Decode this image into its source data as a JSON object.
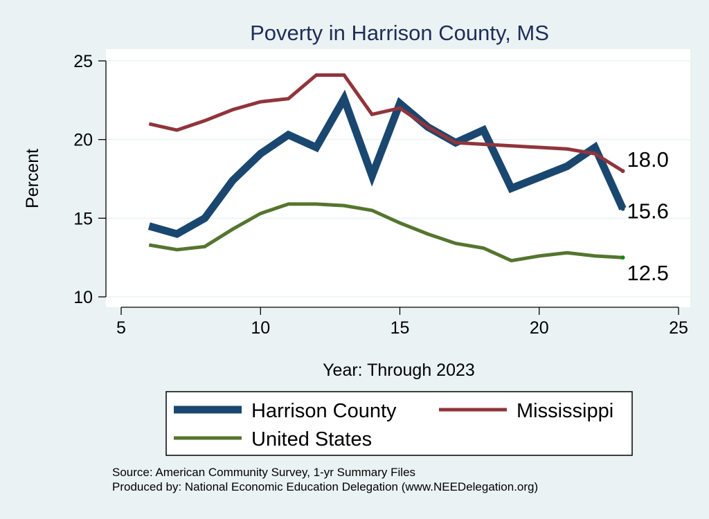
{
  "chart_data": {
    "type": "line",
    "title": "Poverty in Harrison County, MS",
    "xlabel": "Year: Through 2023",
    "ylabel": "Percent",
    "xlim": [
      5,
      25
    ],
    "ylim": [
      10,
      25
    ],
    "xticks": [
      5,
      10,
      15,
      20,
      25
    ],
    "yticks": [
      10,
      15,
      20,
      25
    ],
    "grid": true,
    "legend_position": "bottom",
    "series": [
      {
        "name": "Harrison County",
        "color": "#1a476f",
        "x": [
          6,
          7,
          8,
          9,
          10,
          11,
          12,
          13,
          14,
          15,
          16,
          17,
          18,
          19,
          20,
          21,
          22,
          23
        ],
        "values": [
          14.5,
          14.0,
          15.0,
          17.4,
          19.1,
          20.3,
          19.5,
          22.6,
          17.7,
          22.3,
          20.8,
          19.8,
          20.6,
          16.9,
          17.6,
          18.3,
          19.5,
          15.6
        ],
        "end_label": "15.6"
      },
      {
        "name": "Mississippi",
        "color": "#90353b",
        "x": [
          6,
          7,
          8,
          9,
          10,
          11,
          12,
          13,
          14,
          15,
          16,
          17,
          18,
          19,
          20,
          21,
          22,
          23
        ],
        "values": [
          21.0,
          20.6,
          21.2,
          21.9,
          22.4,
          22.6,
          24.1,
          24.1,
          21.6,
          22.0,
          20.8,
          19.8,
          19.7,
          19.6,
          19.5,
          19.4,
          19.1,
          18.0
        ],
        "end_label": "18.0"
      },
      {
        "name": "United States",
        "color": "#55752f",
        "x": [
          6,
          7,
          8,
          9,
          10,
          11,
          12,
          13,
          14,
          15,
          16,
          17,
          18,
          19,
          20,
          21,
          22,
          23
        ],
        "values": [
          13.3,
          13.0,
          13.2,
          14.3,
          15.3,
          15.9,
          15.9,
          15.8,
          15.5,
          14.7,
          14.0,
          13.4,
          13.1,
          12.3,
          12.6,
          12.8,
          12.6,
          12.5
        ],
        "end_label": "12.5"
      }
    ]
  },
  "notes": {
    "source": "Source: American Community Survey, 1-yr Summary Files",
    "produced": "Produced by: National Economic Education Delegation (www.NEEDelegation.org)"
  }
}
